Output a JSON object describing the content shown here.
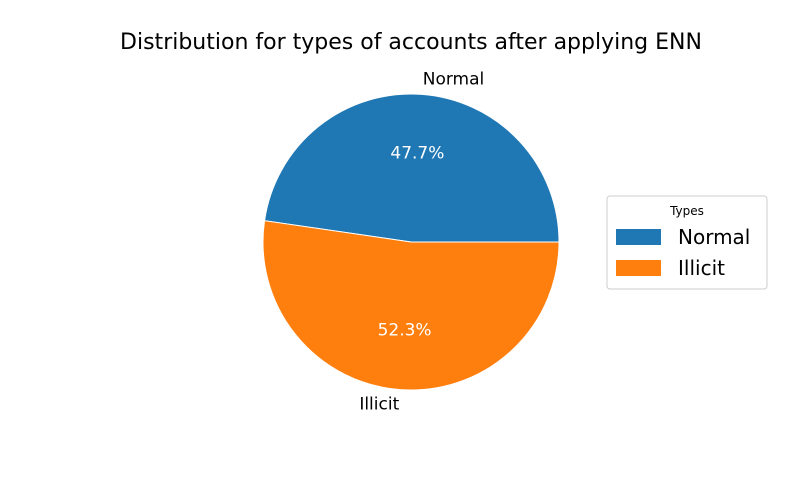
{
  "chart_data": {
    "type": "pie",
    "title": "Distribution for types of accounts after applying ENN",
    "slices": [
      {
        "label": "Normal",
        "value": 47.7,
        "pct_label": "47.7%",
        "color": "#1f77b4"
      },
      {
        "label": "Illicit",
        "value": 52.3,
        "pct_label": "52.3%",
        "color": "#ff7f0e"
      }
    ],
    "pct_label_color": "#ffffff",
    "legend": {
      "title": "Types",
      "placement": "right",
      "entries": [
        "Normal",
        "Illicit"
      ]
    }
  }
}
